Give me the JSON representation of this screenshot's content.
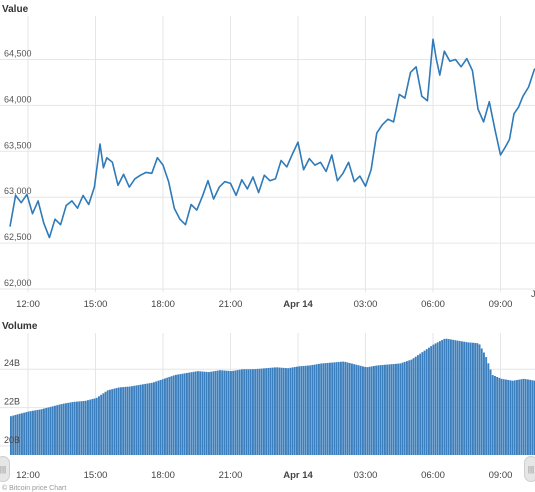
{
  "value_panel": {
    "title": "Value"
  },
  "volume_panel": {
    "title": "Volume"
  },
  "x_axis_labels": [
    "12:00",
    "15:00",
    "18:00",
    "21:00",
    "Apr 14",
    "03:00",
    "06:00",
    "09:00"
  ],
  "cut_label_right": "J",
  "credit": "© Bitcoin price Chart",
  "colors": {
    "line": "#2f7ab8",
    "volume": "#3c7fbf",
    "grid": "#e6e6e6",
    "bold_label": "#333333"
  },
  "chart_data": [
    {
      "type": "line",
      "title": "Value",
      "ylim": [
        62000,
        64800
      ],
      "y_ticks": [
        "62,000",
        "62,500",
        "63,000",
        "63,500",
        "64,000",
        "64,500"
      ],
      "x_hours": [
        11.2,
        11.45,
        11.7,
        11.95,
        12.2,
        12.45,
        12.7,
        12.95,
        13.2,
        13.45,
        13.7,
        13.95,
        14.2,
        14.45,
        14.7,
        14.95,
        15.2,
        15.35,
        15.5,
        15.75,
        16.0,
        16.25,
        16.5,
        16.75,
        17.0,
        17.25,
        17.5,
        17.75,
        18.0,
        18.25,
        18.5,
        18.75,
        19.0,
        19.25,
        19.5,
        19.75,
        20.0,
        20.25,
        20.5,
        20.75,
        21.0,
        21.25,
        21.5,
        21.75,
        22.0,
        22.25,
        22.5,
        22.75,
        23.0,
        23.25,
        23.5,
        23.75,
        24.0,
        24.25,
        24.5,
        24.75,
        25.0,
        25.25,
        25.5,
        25.75,
        26.0,
        26.25,
        26.5,
        26.75,
        27.0,
        27.25,
        27.5,
        27.75,
        28.0,
        28.25,
        28.5,
        28.75,
        29.0,
        29.25,
        29.5,
        29.75,
        30.0,
        30.15,
        30.3,
        30.5,
        30.75,
        31.0,
        31.25,
        31.5,
        31.75,
        32.0,
        32.25,
        32.5,
        32.75,
        33.0,
        33.2,
        33.4,
        33.6,
        33.8,
        34.0,
        34.25,
        34.5,
        34.75,
        35.0
      ],
      "values": [
        62680,
        63020,
        62940,
        63030,
        62820,
        62960,
        62720,
        62560,
        62760,
        62700,
        62910,
        62960,
        62880,
        63020,
        62920,
        63110,
        63580,
        63320,
        63430,
        63380,
        63130,
        63250,
        63110,
        63200,
        63240,
        63270,
        63260,
        63430,
        63350,
        63170,
        62880,
        62760,
        62700,
        62920,
        62860,
        63010,
        63180,
        62980,
        63110,
        63170,
        63150,
        63020,
        63190,
        63090,
        63220,
        63050,
        63240,
        63180,
        63200,
        63400,
        63330,
        63470,
        63600,
        63300,
        63420,
        63350,
        63380,
        63280,
        63460,
        63180,
        63260,
        63380,
        63170,
        63230,
        63120,
        63300,
        63700,
        63790,
        63850,
        63820,
        64120,
        64080,
        64360,
        64420,
        64100,
        64050,
        64720,
        64500,
        64330,
        64590,
        64480,
        64500,
        64420,
        64510,
        64380,
        63960,
        63820,
        64040,
        63740,
        63460,
        63540,
        63630,
        63910,
        63980,
        64100,
        64200,
        64390,
        64440,
        64350
      ]
    },
    {
      "type": "area",
      "title": "Volume",
      "ylim": [
        20000000000,
        26000000000
      ],
      "y_ticks": [
        "20B",
        "22B",
        "24B"
      ],
      "x_hours": [
        11.2,
        11.5,
        12.0,
        12.5,
        13.0,
        13.5,
        14.0,
        14.5,
        15.0,
        15.5,
        16.0,
        16.5,
        17.0,
        17.5,
        18.0,
        18.5,
        19.0,
        19.5,
        20.0,
        20.5,
        21.0,
        21.5,
        22.0,
        22.5,
        23.0,
        23.5,
        24.0,
        24.5,
        25.0,
        25.5,
        26.0,
        26.5,
        27.0,
        27.5,
        28.0,
        28.5,
        29.0,
        29.5,
        30.0,
        30.5,
        31.0,
        31.5,
        32.0,
        32.3,
        32.6,
        33.0,
        33.5,
        34.0,
        34.5,
        35.0
      ],
      "values": [
        21550000000,
        21650000000,
        21800000000,
        21900000000,
        22050000000,
        22200000000,
        22300000000,
        22350000000,
        22500000000,
        22900000000,
        23050000000,
        23100000000,
        23200000000,
        23300000000,
        23500000000,
        23700000000,
        23800000000,
        23900000000,
        23850000000,
        23950000000,
        23900000000,
        24000000000,
        24000000000,
        24050000000,
        24100000000,
        24050000000,
        24150000000,
        24200000000,
        24300000000,
        24350000000,
        24400000000,
        24250000000,
        24100000000,
        24200000000,
        24250000000,
        24300000000,
        24500000000,
        24900000000,
        25300000000,
        25600000000,
        25500000000,
        25400000000,
        25350000000,
        24700000000,
        23700000000,
        23500000000,
        23400000000,
        23500000000,
        23400000000,
        23600000000
      ]
    }
  ]
}
